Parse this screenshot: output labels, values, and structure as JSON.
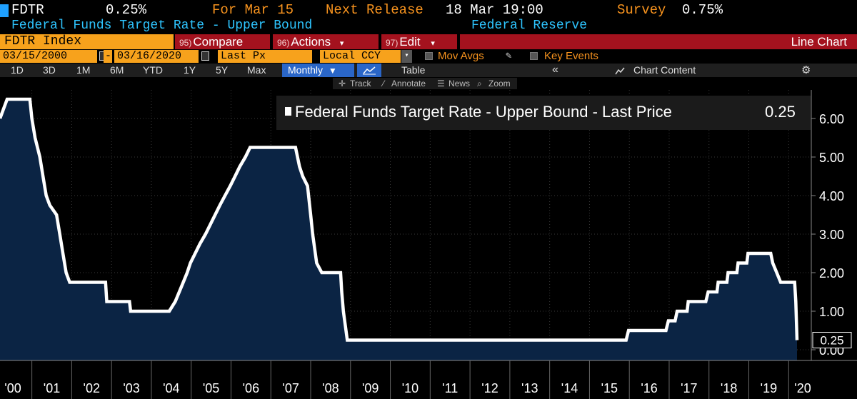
{
  "header": {
    "ticker": "FDTR",
    "value": "0.25%",
    "for_label": "For Mar 15",
    "next_release_label": "Next Release",
    "next_release_value": "18 Mar 19:00",
    "survey_label": "Survey",
    "survey_value": "0.75%",
    "description": "Federal Funds Target Rate - Upper Bound",
    "source": "Federal Reserve"
  },
  "toolbar": {
    "security": "FDTR Index",
    "compare_num": "95)",
    "compare_label": "Compare",
    "actions_num": "96)",
    "actions_label": "Actions",
    "edit_num": "97)",
    "edit_label": "Edit",
    "chart_type": "Line Chart",
    "start_date": "03/15/2000",
    "end_date": "03/16/2020",
    "field": "Last Px",
    "currency": "Local CCY",
    "mov_avgs": "Mov Avgs",
    "key_events": "Key Events"
  },
  "periods": [
    "1D",
    "3D",
    "1M",
    "6M",
    "YTD",
    "1Y",
    "5Y",
    "Max"
  ],
  "frequency": "Monthly",
  "table_label": "Table",
  "chart_content_label": "Chart Content",
  "chart_tools": {
    "track": "Track",
    "annotate": "Annotate",
    "news": "News",
    "zoom": "Zoom"
  },
  "chart_data": {
    "type": "area",
    "title": "",
    "legend": "Federal Funds Target Rate - Upper Bound - Last Price",
    "last_value": "0.25",
    "ylim": [
      -0.1,
      6.85
    ],
    "y_ticks": [
      "6.00",
      "5.00",
      "4.00",
      "3.00",
      "2.00",
      "1.00",
      "0.00"
    ],
    "y_tick_values": [
      6,
      5,
      4,
      3,
      2,
      1,
      0
    ],
    "x_ticks": [
      "'00",
      "'01",
      "'02",
      "'03",
      "'04",
      "'05",
      "'06",
      "'07",
      "'08",
      "'09",
      "'10",
      "'11",
      "'12",
      "'13",
      "'14",
      "'15",
      "'16",
      "'17",
      "'18",
      "'19",
      "'20"
    ],
    "x_tick_years": [
      2000,
      2001,
      2002,
      2003,
      2004,
      2005,
      2006,
      2007,
      2008,
      2009,
      2010,
      2011,
      2012,
      2013,
      2014,
      2015,
      2016,
      2017,
      2018,
      2019,
      2020
    ],
    "xlim": [
      2000.2,
      2020.21
    ],
    "series": [
      {
        "line_color": "#ffffff",
        "fill_color": "#0b2444",
        "points": [
          [
            2000.2,
            6.0
          ],
          [
            2000.38,
            6.5
          ],
          [
            2000.95,
            6.5
          ],
          [
            2001.0,
            6.0
          ],
          [
            2001.08,
            5.5
          ],
          [
            2001.2,
            5.0
          ],
          [
            2001.28,
            4.5
          ],
          [
            2001.36,
            4.0
          ],
          [
            2001.45,
            3.75
          ],
          [
            2001.62,
            3.5
          ],
          [
            2001.7,
            3.0
          ],
          [
            2001.78,
            2.5
          ],
          [
            2001.86,
            2.0
          ],
          [
            2001.95,
            1.75
          ],
          [
            2002.85,
            1.75
          ],
          [
            2002.88,
            1.25
          ],
          [
            2003.45,
            1.25
          ],
          [
            2003.48,
            1.0
          ],
          [
            2004.45,
            1.0
          ],
          [
            2004.6,
            1.25
          ],
          [
            2004.7,
            1.5
          ],
          [
            2004.8,
            1.75
          ],
          [
            2004.9,
            2.0
          ],
          [
            2004.98,
            2.25
          ],
          [
            2005.1,
            2.5
          ],
          [
            2005.22,
            2.75
          ],
          [
            2005.36,
            3.0
          ],
          [
            2005.48,
            3.25
          ],
          [
            2005.6,
            3.5
          ],
          [
            2005.72,
            3.75
          ],
          [
            2005.85,
            4.0
          ],
          [
            2005.98,
            4.25
          ],
          [
            2006.1,
            4.5
          ],
          [
            2006.22,
            4.75
          ],
          [
            2006.36,
            5.0
          ],
          [
            2006.48,
            5.25
          ],
          [
            2007.62,
            5.25
          ],
          [
            2007.72,
            4.75
          ],
          [
            2007.8,
            4.5
          ],
          [
            2007.92,
            4.25
          ],
          [
            2008.0,
            3.5
          ],
          [
            2008.05,
            3.0
          ],
          [
            2008.15,
            2.25
          ],
          [
            2008.28,
            2.0
          ],
          [
            2008.75,
            2.0
          ],
          [
            2008.78,
            1.5
          ],
          [
            2008.82,
            1.0
          ],
          [
            2008.92,
            0.25
          ],
          [
            2015.92,
            0.25
          ],
          [
            2015.98,
            0.5
          ],
          [
            2016.92,
            0.5
          ],
          [
            2016.98,
            0.75
          ],
          [
            2017.15,
            0.75
          ],
          [
            2017.2,
            1.0
          ],
          [
            2017.45,
            1.0
          ],
          [
            2017.48,
            1.25
          ],
          [
            2017.92,
            1.25
          ],
          [
            2017.98,
            1.5
          ],
          [
            2018.2,
            1.5
          ],
          [
            2018.23,
            1.75
          ],
          [
            2018.45,
            1.75
          ],
          [
            2018.48,
            2.0
          ],
          [
            2018.7,
            2.0
          ],
          [
            2018.73,
            2.25
          ],
          [
            2018.95,
            2.25
          ],
          [
            2018.98,
            2.5
          ],
          [
            2019.55,
            2.5
          ],
          [
            2019.6,
            2.25
          ],
          [
            2019.7,
            2.0
          ],
          [
            2019.8,
            1.75
          ],
          [
            2020.15,
            1.75
          ],
          [
            2020.18,
            1.25
          ],
          [
            2020.21,
            0.25
          ]
        ]
      }
    ]
  }
}
